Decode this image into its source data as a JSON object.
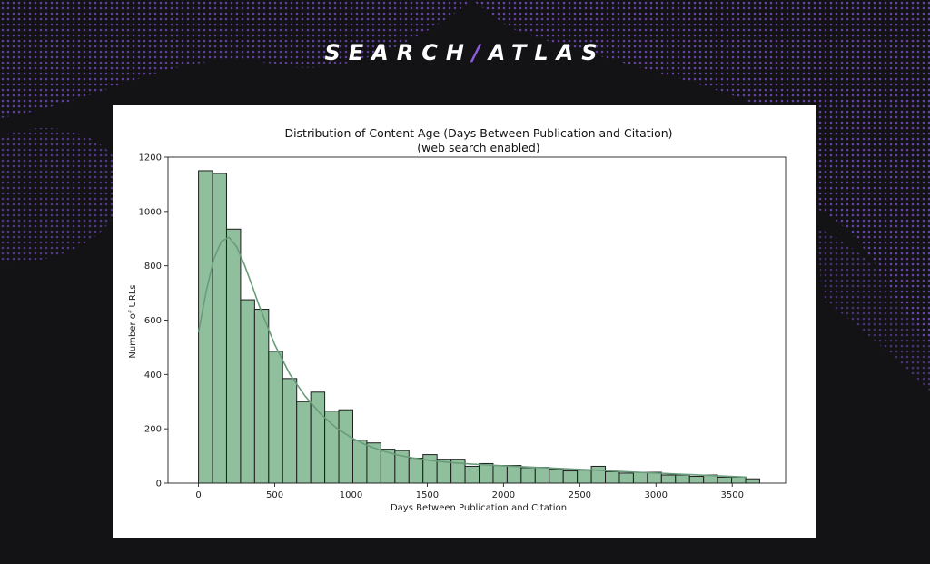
{
  "brand": {
    "logo_left": "SEARCH",
    "logo_sep": "/",
    "logo_right": "ATLAS",
    "accent": "#8f5be0",
    "background": "#131215"
  },
  "chart_data": {
    "type": "bar",
    "title": "Distribution of Content Age (Days Between Publication and Citation)",
    "subtitle": "(web search enabled)",
    "xlabel": "Days Between Publication and Citation",
    "ylabel": "Number of URLs",
    "xlim": [
      -200,
      3850
    ],
    "ylim": [
      0,
      1200
    ],
    "xticks": [
      0,
      500,
      1000,
      1500,
      2000,
      2500,
      3000,
      3500
    ],
    "yticks": [
      0,
      200,
      400,
      600,
      800,
      1000,
      1200
    ],
    "bin_width": 92,
    "bins_start": [
      0,
      92,
      184,
      276,
      368,
      460,
      552,
      644,
      736,
      828,
      920,
      1012,
      1104,
      1196,
      1288,
      1380,
      1472,
      1564,
      1656,
      1748,
      1840,
      1932,
      2024,
      2116,
      2208,
      2300,
      2392,
      2484,
      2576,
      2668,
      2760,
      2852,
      2944,
      3036,
      3128,
      3220,
      3312,
      3404,
      3496,
      3588
    ],
    "values": [
      1150,
      1140,
      935,
      675,
      640,
      485,
      385,
      300,
      335,
      265,
      270,
      158,
      148,
      125,
      120,
      92,
      105,
      88,
      88,
      62,
      72,
      65,
      65,
      57,
      58,
      52,
      45,
      48,
      62,
      42,
      37,
      40,
      40,
      30,
      30,
      25,
      30,
      22,
      22,
      16
    ],
    "kde": {
      "x": [
        0,
        50,
        100,
        150,
        200,
        250,
        300,
        350,
        400,
        450,
        500,
        600,
        700,
        800,
        900,
        1000,
        1100,
        1200,
        1300,
        1400,
        1500,
        1600,
        1700,
        1800,
        1900,
        2000,
        2200,
        2400,
        2600,
        2800,
        3000,
        3200,
        3400,
        3600
      ],
      "y": [
        555,
        705,
        825,
        890,
        905,
        870,
        805,
        730,
        650,
        580,
        510,
        400,
        320,
        255,
        205,
        168,
        140,
        120,
        104,
        93,
        85,
        79,
        74,
        70,
        67,
        64,
        58,
        53,
        48,
        42,
        37,
        32,
        27,
        22
      ]
    },
    "bar_color": "#8fbf9c",
    "edge_color": "#1f1f1f",
    "line_color": "#6a9c7c",
    "grid": false,
    "legend": "none"
  }
}
